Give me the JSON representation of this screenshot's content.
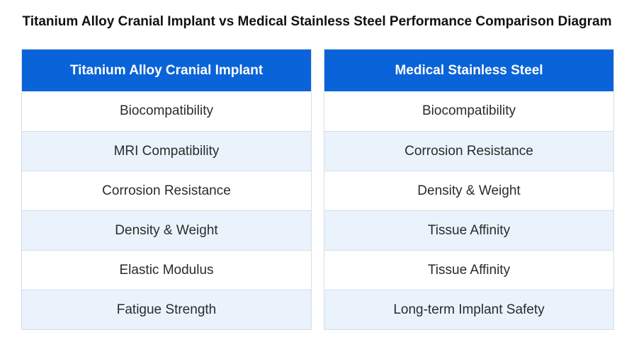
{
  "title": "Titanium Alloy Cranial Implant vs Medical Stainless Steel Performance Comparison Diagram",
  "colors": {
    "header_bg": "#0a63d8",
    "header_text": "#ffffff",
    "alt_row_bg": "#eaf3fc",
    "row_bg": "#ffffff",
    "border": "#d6dde8"
  },
  "left_table": {
    "header": "Titanium Alloy Cranial Implant",
    "rows": [
      "Biocompatibility",
      "MRI Compatibility",
      "Corrosion Resistance",
      "Density & Weight",
      "Elastic Modulus",
      "Fatigue Strength"
    ]
  },
  "right_table": {
    "header": "Medical Stainless Steel",
    "rows": [
      "Biocompatibility",
      "Corrosion Resistance",
      "Density & Weight",
      "Tissue Affinity",
      "Tissue Affinity",
      "Long-term Implant Safety"
    ]
  }
}
